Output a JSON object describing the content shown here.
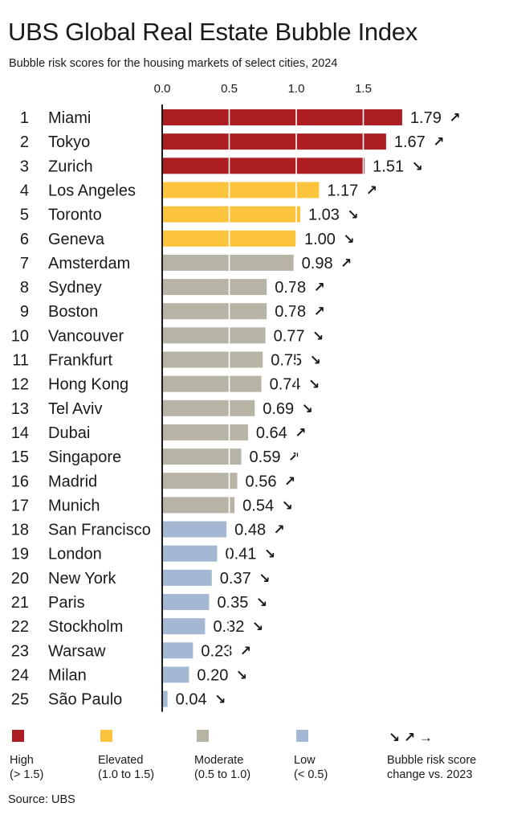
{
  "title": "UBS Global Real Estate Bubble Index",
  "subtitle": "Bubble risk scores for the housing markets of select cities, 2024",
  "colors": {
    "High": "#ad1e23",
    "Elevated": "#fcc33d",
    "Moderate": "#b8b4a5",
    "Low": "#a5b8d3"
  },
  "chart_data": {
    "type": "bar",
    "orientation": "horizontal",
    "xlim": [
      0,
      1.85
    ],
    "xticks": [
      "0.0",
      "0.5",
      "1.0",
      "1.5"
    ],
    "gridlines": "white vertical lines inside bars",
    "rows": [
      {
        "rank": "1",
        "city": "Miami",
        "value": 1.79,
        "label": "1.79",
        "change": "up",
        "category": "High"
      },
      {
        "rank": "2",
        "city": "Tokyo",
        "value": 1.67,
        "label": "1.67",
        "change": "up",
        "category": "High"
      },
      {
        "rank": "3",
        "city": "Zurich",
        "value": 1.51,
        "label": "1.51",
        "change": "down",
        "category": "High"
      },
      {
        "rank": "4",
        "city": "Los Angeles",
        "value": 1.17,
        "label": "1.17",
        "change": "up",
        "category": "Elevated"
      },
      {
        "rank": "5",
        "city": "Toronto",
        "value": 1.03,
        "label": "1.03",
        "change": "down",
        "category": "Elevated"
      },
      {
        "rank": "6",
        "city": "Geneva",
        "value": 1.0,
        "label": "1.00",
        "change": "down",
        "category": "Elevated"
      },
      {
        "rank": "7",
        "city": "Amsterdam",
        "value": 0.98,
        "label": "0.98",
        "change": "up",
        "category": "Moderate"
      },
      {
        "rank": "8",
        "city": "Sydney",
        "value": 0.78,
        "label": "0.78",
        "change": "up",
        "category": "Moderate"
      },
      {
        "rank": "9",
        "city": "Boston",
        "value": 0.78,
        "label": "0.78",
        "change": "up",
        "category": "Moderate"
      },
      {
        "rank": "10",
        "city": "Vancouver",
        "value": 0.77,
        "label": "0.77",
        "change": "down",
        "category": "Moderate"
      },
      {
        "rank": "11",
        "city": "Frankfurt",
        "value": 0.75,
        "label": "0.75",
        "change": "down",
        "category": "Moderate"
      },
      {
        "rank": "12",
        "city": "Hong Kong",
        "value": 0.74,
        "label": "0.74",
        "change": "down",
        "category": "Moderate"
      },
      {
        "rank": "13",
        "city": "Tel Aviv",
        "value": 0.69,
        "label": "0.69",
        "change": "down",
        "category": "Moderate"
      },
      {
        "rank": "14",
        "city": "Dubai",
        "value": 0.64,
        "label": "0.64",
        "change": "up",
        "category": "Moderate"
      },
      {
        "rank": "15",
        "city": "Singapore",
        "value": 0.59,
        "label": "0.59",
        "change": "up",
        "category": "Moderate"
      },
      {
        "rank": "16",
        "city": "Madrid",
        "value": 0.56,
        "label": "0.56",
        "change": "up",
        "category": "Moderate"
      },
      {
        "rank": "17",
        "city": "Munich",
        "value": 0.54,
        "label": "0.54",
        "change": "down",
        "category": "Moderate"
      },
      {
        "rank": "18",
        "city": "San Francisco",
        "value": 0.48,
        "label": "0.48",
        "change": "up",
        "category": "Low"
      },
      {
        "rank": "19",
        "city": "London",
        "value": 0.41,
        "label": "0.41",
        "change": "down",
        "category": "Low"
      },
      {
        "rank": "20",
        "city": "New York",
        "value": 0.37,
        "label": "0.37",
        "change": "down",
        "category": "Low"
      },
      {
        "rank": "21",
        "city": "Paris",
        "value": 0.35,
        "label": "0.35",
        "change": "down",
        "category": "Low"
      },
      {
        "rank": "22",
        "city": "Stockholm",
        "value": 0.32,
        "label": "0.32",
        "change": "down",
        "category": "Low"
      },
      {
        "rank": "23",
        "city": "Warsaw",
        "value": 0.23,
        "label": "0.23",
        "change": "up",
        "category": "Low"
      },
      {
        "rank": "24",
        "city": "Milan",
        "value": 0.2,
        "label": "0.20",
        "change": "down",
        "category": "Low"
      },
      {
        "rank": "25",
        "city": "São Paulo",
        "value": 0.04,
        "label": "0.04",
        "change": "down",
        "category": "Low"
      }
    ]
  },
  "legend": {
    "high": {
      "label": "High",
      "range": "(> 1.5)"
    },
    "elevated": {
      "label": "Elevated",
      "range": "(1.0 to 1.5)"
    },
    "moderate": {
      "label": "Moderate",
      "range": "(0.5 to 1.0)"
    },
    "low": {
      "label": "Low",
      "range": "(< 0.5)"
    },
    "change": {
      "arrows": "↘ ↗ →",
      "line1": "Bubble risk score",
      "line2": "change vs. 2023"
    }
  },
  "source": "Source: UBS",
  "arrow_glyphs": {
    "up": "↗",
    "down": "↘",
    "flat": "→"
  }
}
